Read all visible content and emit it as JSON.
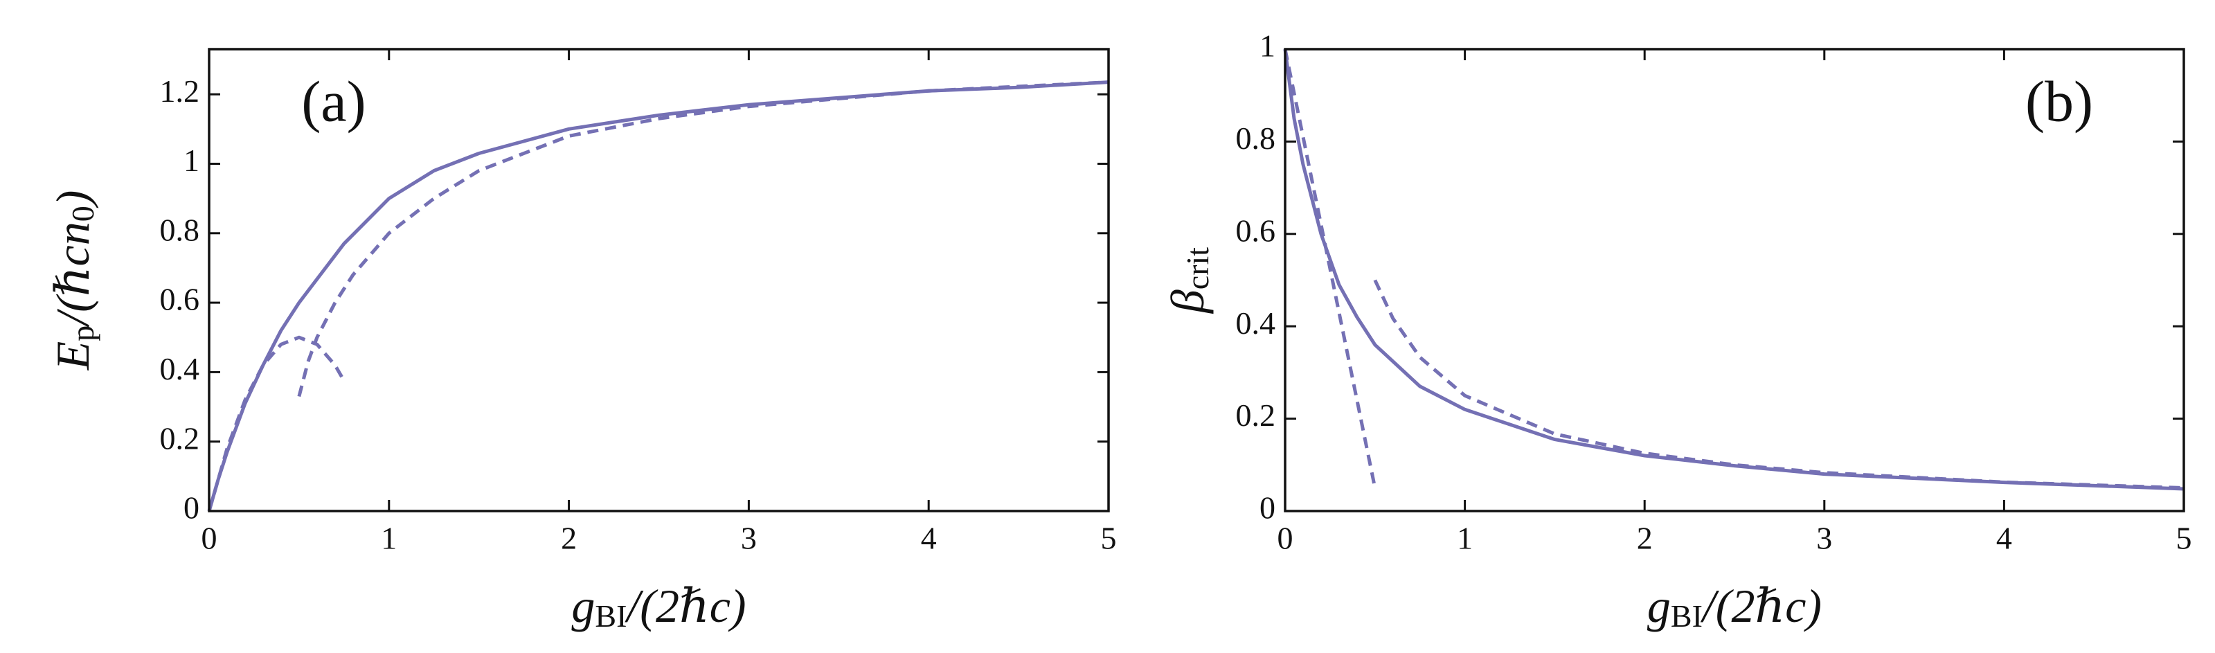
{
  "chart_data": [
    {
      "type": "line",
      "annotation": "(a)",
      "xlabel": [
        {
          "text": "g"
        },
        {
          "text": "BI",
          "sub": true
        },
        {
          "text": "/(2ℏc)"
        }
      ],
      "ylabel": [
        {
          "text": "E"
        },
        {
          "text": "p",
          "sub": true
        },
        {
          "text": "/(ℏcn"
        },
        {
          "text": "0",
          "sub": true
        },
        {
          "text": ")"
        }
      ],
      "xlim": [
        0,
        5
      ],
      "ylim": [
        0,
        1.33
      ],
      "xticks": [
        0,
        1,
        2,
        3,
        4,
        5
      ],
      "yticks": [
        0,
        0.2,
        0.4,
        0.6,
        0.8,
        1,
        1.2
      ],
      "series": [
        {
          "color": "#7470b4",
          "dashed": false,
          "x": [
            0,
            0.05,
            0.1,
            0.2,
            0.3,
            0.4,
            0.5,
            0.75,
            1,
            1.25,
            1.5,
            2,
            2.5,
            3,
            3.5,
            4,
            4.5,
            5
          ],
          "values": [
            0,
            0.09,
            0.17,
            0.31,
            0.42,
            0.52,
            0.6,
            0.77,
            0.9,
            0.98,
            1.03,
            1.1,
            1.14,
            1.17,
            1.19,
            1.21,
            1.22,
            1.235
          ]
        },
        {
          "color": "#7470b4",
          "dashed": true,
          "x": [
            0,
            0.1,
            0.2,
            0.3,
            0.4,
            0.5,
            0.6,
            0.7,
            0.75
          ],
          "values": [
            0,
            0.18,
            0.32,
            0.42,
            0.48,
            0.5,
            0.48,
            0.42,
            0.375
          ]
        },
        {
          "color": "#7470b4",
          "dashed": true,
          "x": [
            0.5,
            0.55,
            0.6,
            0.7,
            0.8,
            1,
            1.25,
            1.5,
            2,
            2.5,
            3,
            4,
            5
          ],
          "values": [
            0.33,
            0.43,
            0.5,
            0.6,
            0.68,
            0.8,
            0.9,
            0.98,
            1.08,
            1.13,
            1.165,
            1.21,
            1.235
          ]
        }
      ]
    },
    {
      "type": "line",
      "annotation": "(b)",
      "xlabel": [
        {
          "text": "g"
        },
        {
          "text": "BI",
          "sub": true
        },
        {
          "text": "/(2ℏc)"
        }
      ],
      "ylabel": [
        {
          "text": "β"
        },
        {
          "text": "crit",
          "sub": true
        }
      ],
      "xlim": [
        0,
        5
      ],
      "ylim": [
        0,
        1
      ],
      "xticks": [
        0,
        1,
        2,
        3,
        4,
        5
      ],
      "yticks": [
        0,
        0.2,
        0.4,
        0.6,
        0.8,
        1
      ],
      "series": [
        {
          "color": "#7470b4",
          "dashed": false,
          "x": [
            0,
            0.05,
            0.1,
            0.2,
            0.3,
            0.4,
            0.5,
            0.75,
            1,
            1.5,
            2,
            2.5,
            3,
            4,
            5
          ],
          "values": [
            1,
            0.85,
            0.75,
            0.6,
            0.49,
            0.42,
            0.36,
            0.27,
            0.22,
            0.155,
            0.12,
            0.098,
            0.08,
            0.062,
            0.048
          ]
        },
        {
          "color": "#7470b4",
          "dashed": true,
          "x": [
            0,
            0.5
          ],
          "values": [
            1,
            0.05
          ]
        },
        {
          "color": "#7470b4",
          "dashed": true,
          "x": [
            0.5,
            0.6,
            0.75,
            1,
            1.5,
            2,
            2.5,
            3,
            4,
            5
          ],
          "values": [
            0.5,
            0.417,
            0.333,
            0.25,
            0.167,
            0.125,
            0.1,
            0.083,
            0.0625,
            0.05
          ]
        }
      ]
    }
  ]
}
